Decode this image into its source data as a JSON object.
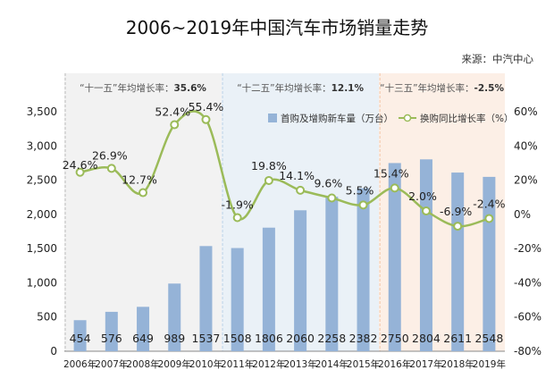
{
  "title": "2006~2019年中国汽车市场销量走势",
  "source": "来源：中汽中心",
  "periods": [
    {
      "label": "“十一五”年均增长率：",
      "rate": "35.6%",
      "color": "#f2f2f2",
      "line": "#bfbfbf"
    },
    {
      "label": "“十二五”年均增长率：",
      "rate": "12.1%",
      "color": "#eaf1f7",
      "line": "#bcd2e8"
    },
    {
      "label": "“十三五”年均增长率：",
      "rate": "-2.5%",
      "color": "#fcefe6",
      "line": "#f2c5a5"
    }
  ],
  "legend": {
    "bars": "首购及增购新车量（万台）",
    "line": "换购同比增长率（%）"
  },
  "colors": {
    "bar": "#95b3d7",
    "line": "#9bbb59",
    "marker_fill": "#ffffff"
  },
  "chart_data": {
    "type": "bar+line",
    "categories": [
      "2006年",
      "2007年",
      "2008年",
      "2009年",
      "2010年",
      "2011年",
      "2012年",
      "2013年",
      "2014年",
      "2015年",
      "2016年",
      "2017年",
      "2018年",
      "2019年"
    ],
    "series": [
      {
        "name": "首购及增购新车量（万台）",
        "type": "bar",
        "axis": "left",
        "values": [
          454,
          576,
          649,
          989,
          1537,
          1508,
          1806,
          2060,
          2258,
          2382,
          2750,
          2804,
          2611,
          2548
        ],
        "labels": [
          "454",
          "576",
          "649",
          "989",
          "1537",
          "1508",
          "1806",
          "2060",
          "2258",
          "2382",
          "2750",
          "2804",
          "2611",
          "2548"
        ]
      },
      {
        "name": "换购同比增长率（%）",
        "type": "line",
        "axis": "right",
        "values": [
          24.6,
          26.9,
          12.7,
          52.4,
          55.4,
          -1.9,
          19.8,
          14.1,
          9.6,
          5.5,
          15.4,
          2.0,
          -6.9,
          -2.4
        ],
        "labels": [
          "24.6%",
          "26.9%",
          "12.7%",
          "52.4%",
          "55.4%",
          "-1.9%",
          "19.8%",
          "14.1%",
          "9.6%",
          "5.5%",
          "15.4%",
          "2.0%",
          "-6.9%",
          "-2.4%"
        ]
      }
    ],
    "left_axis": {
      "min": 0,
      "max": 3500,
      "ticks": [
        "0",
        "500",
        "1,000",
        "1,500",
        "2,000",
        "2,500",
        "3,000",
        "3,500"
      ]
    },
    "right_axis": {
      "min": -80,
      "max": 60,
      "ticks": [
        "-80%",
        "-60%",
        "-40%",
        "-20%",
        "0%",
        "20%",
        "40%",
        "60%"
      ]
    }
  }
}
